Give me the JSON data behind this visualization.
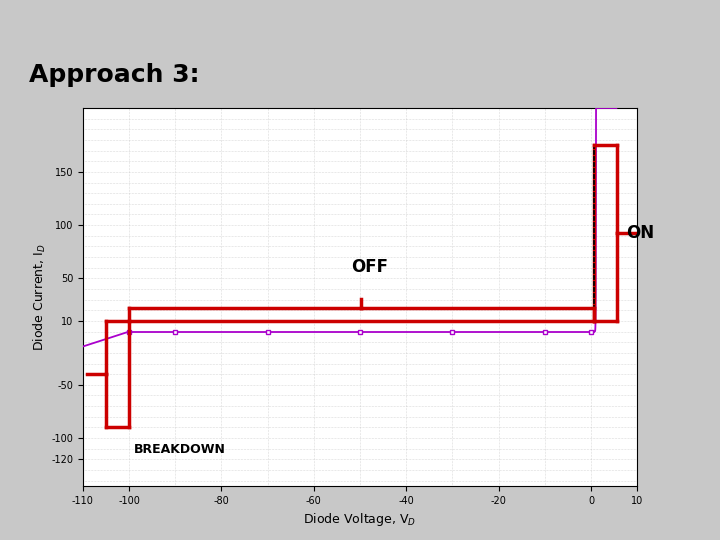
{
  "title": "Approach 3:",
  "xlabel": "Diode Voltage, V$_D$",
  "ylabel": "Diode Current, I$_D$",
  "xlim": [
    -110,
    10
  ],
  "ylim": [
    -145,
    210
  ],
  "bg_gray": "#c8c8c8",
  "header_dark": "#555555",
  "orange": "#e87722",
  "breakdown_V": -100,
  "forward_V": 0.6,
  "label_OFF": "OFF",
  "label_ON": "ON",
  "label_BREAKDOWN": "BREAKDOWN",
  "curve_color": "#aa00cc",
  "red_color": "#cc0000"
}
